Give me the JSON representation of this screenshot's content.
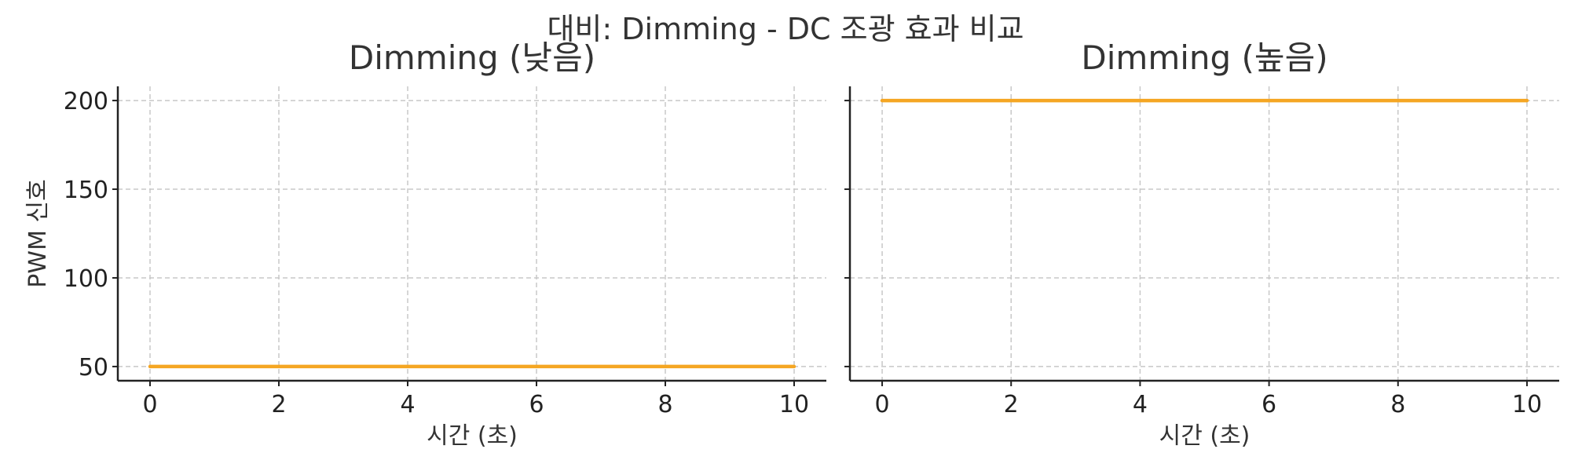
{
  "figure": {
    "title": "대비: Dimming - DC 조광 효과 비교"
  },
  "chart_data": [
    {
      "type": "line",
      "title": "Dimming (낮음)",
      "xlabel": "시간 (초)",
      "ylabel": "PWM 신호",
      "xlim": [
        -0.5,
        10.5
      ],
      "ylim": [
        42,
        208
      ],
      "xticks": [
        0,
        2,
        4,
        6,
        8,
        10
      ],
      "yticks": [
        50,
        100,
        150,
        200
      ],
      "ytick_labels_visible": true,
      "grid": true,
      "series": [
        {
          "color": "#f5a623",
          "x": [
            0,
            10
          ],
          "y": [
            50,
            50
          ]
        }
      ]
    },
    {
      "type": "line",
      "title": "Dimming (높음)",
      "xlabel": "시간 (초)",
      "ylabel": "",
      "xlim": [
        -0.5,
        10.5
      ],
      "ylim": [
        42,
        208
      ],
      "xticks": [
        0,
        2,
        4,
        6,
        8,
        10
      ],
      "yticks": [
        50,
        100,
        150,
        200
      ],
      "ytick_labels_visible": false,
      "grid": true,
      "series": [
        {
          "color": "#f5a623",
          "x": [
            0,
            10
          ],
          "y": [
            200,
            200
          ]
        }
      ]
    }
  ]
}
